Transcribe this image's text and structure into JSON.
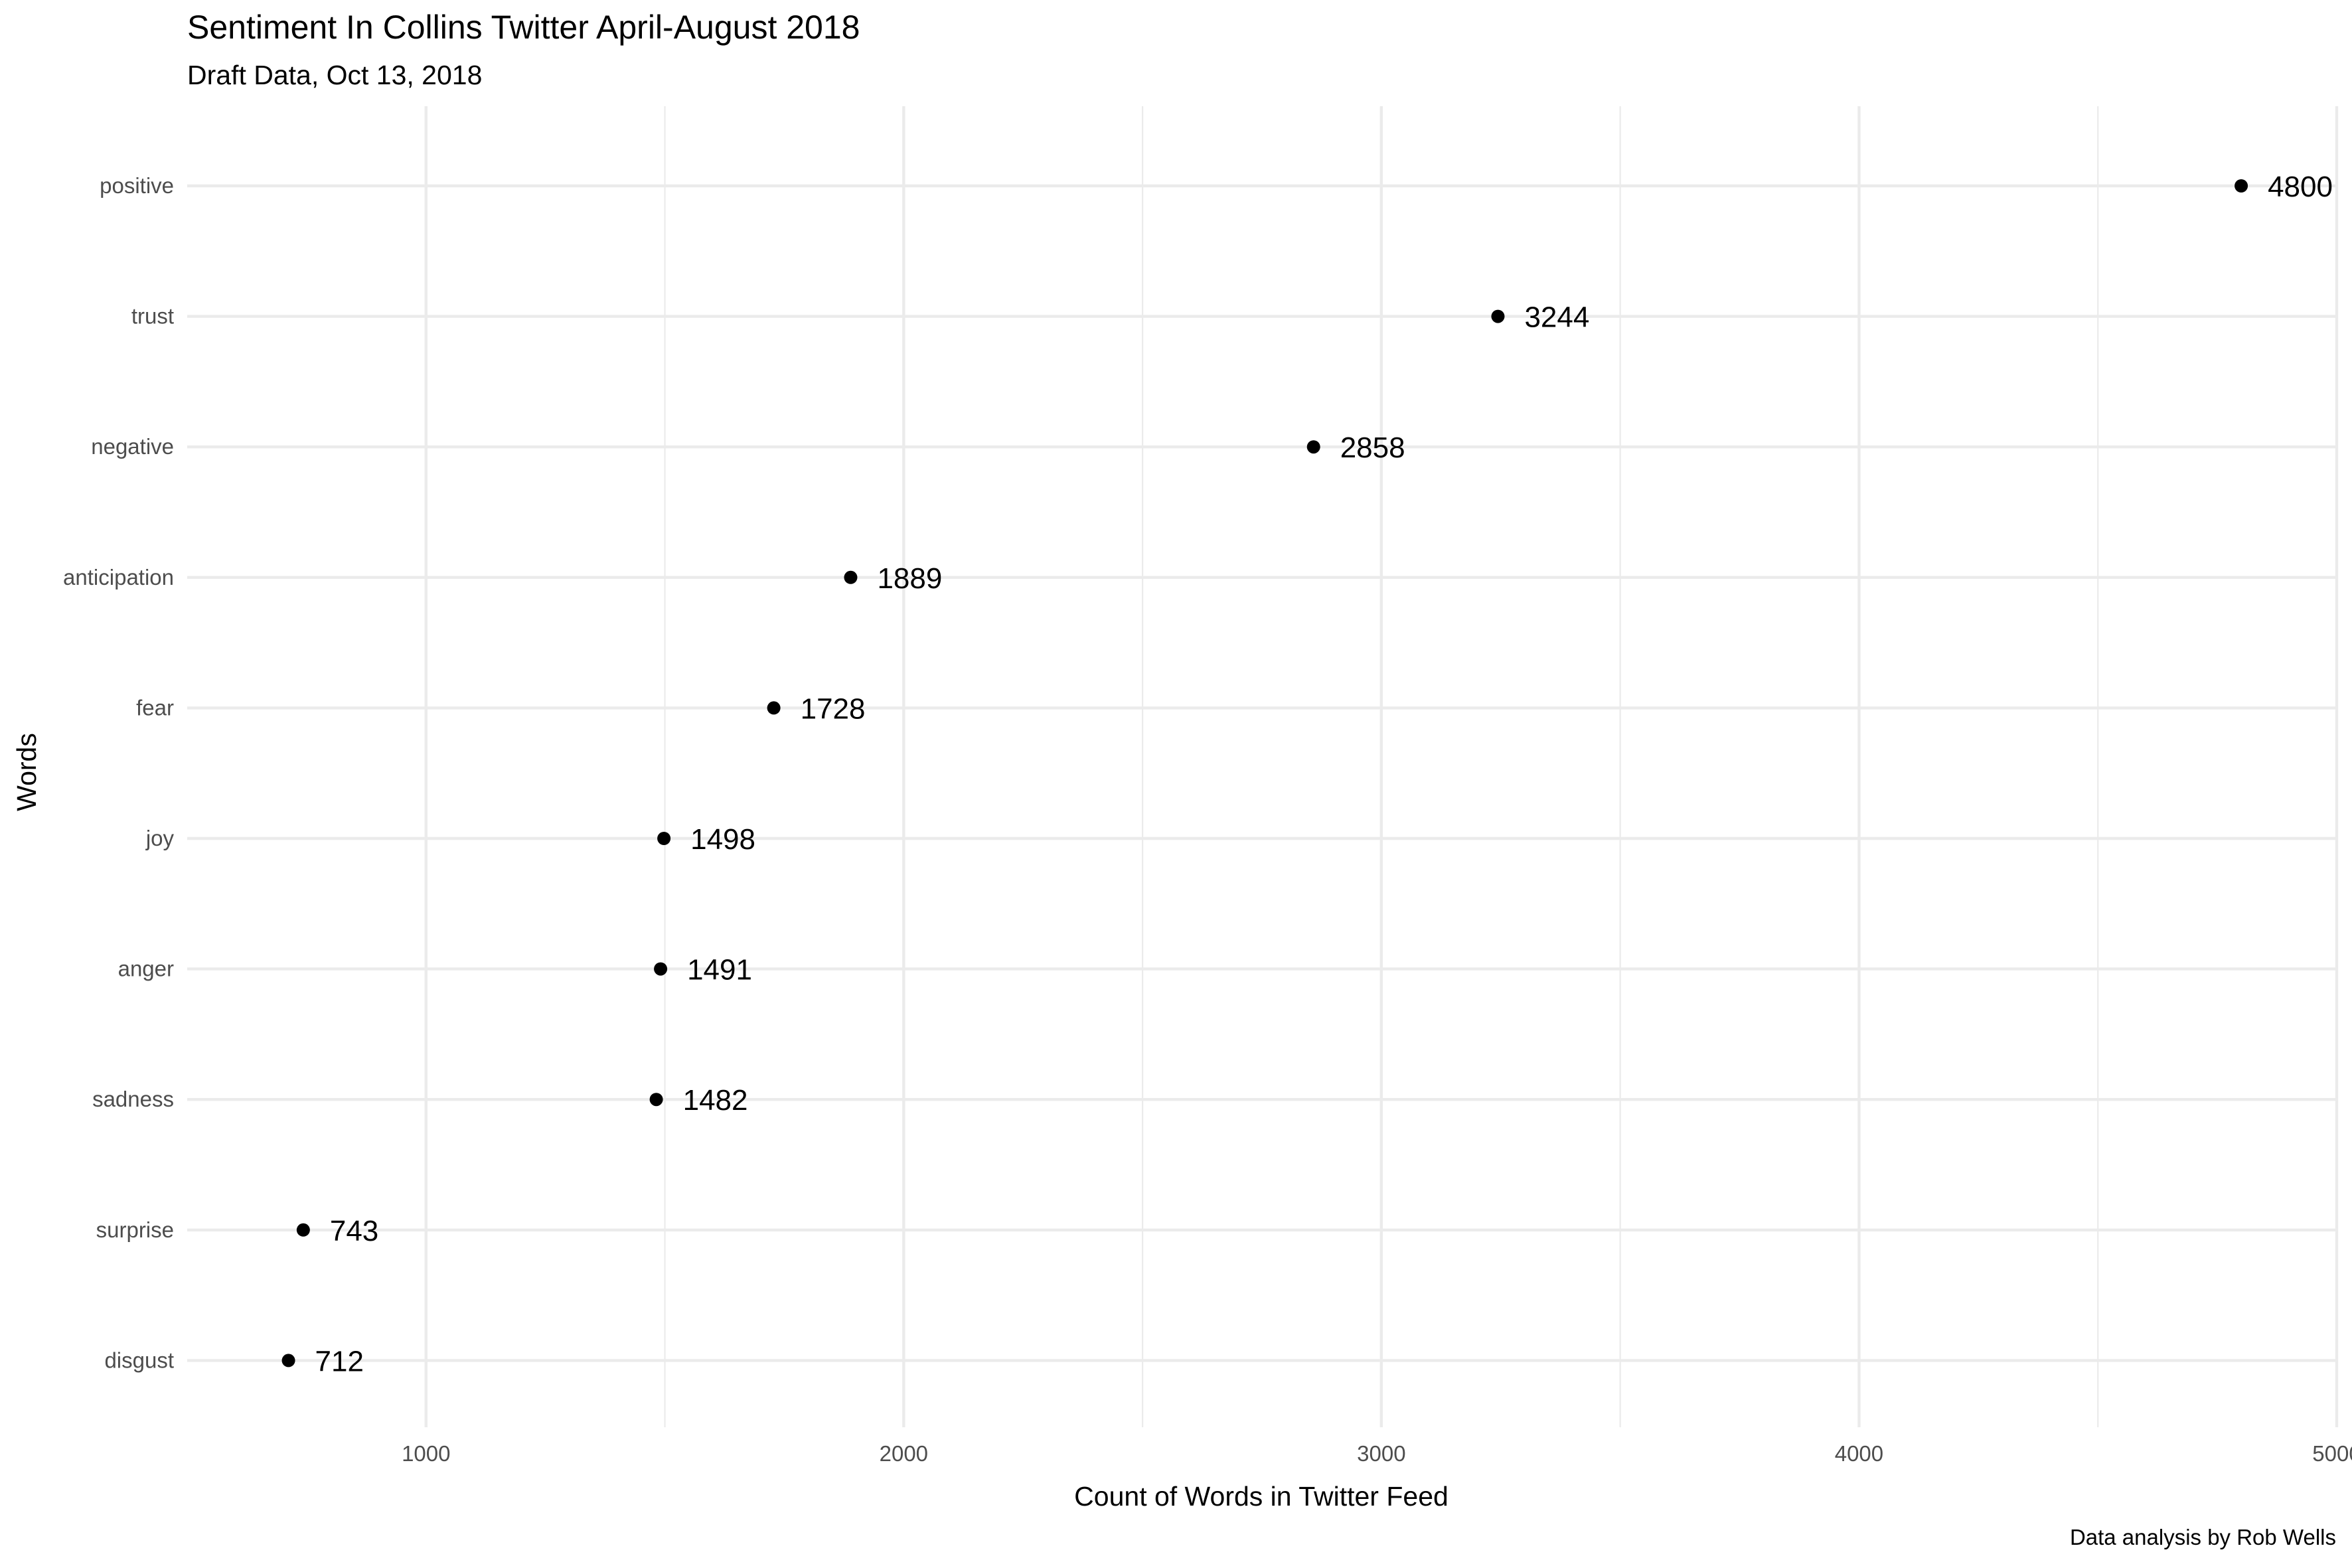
{
  "chart_data": {
    "type": "scatter",
    "title": "Sentiment In Collins Twitter April-August 2018",
    "subtitle": "Draft Data, Oct 13, 2018",
    "caption": "Data analysis by Rob Wells",
    "xlabel": "Count of Words in Twitter Feed",
    "ylabel": "Words",
    "xlim": [
      500,
      5000
    ],
    "x_ticks": [
      1000,
      2000,
      3000,
      4000,
      5000
    ],
    "x_tick_labels": [
      "1000",
      "2000",
      "3000",
      "4000",
      "5000"
    ],
    "grid": true,
    "point_color": "#000000",
    "categories": [
      "positive",
      "trust",
      "negative",
      "anticipation",
      "fear",
      "joy",
      "anger",
      "sadness",
      "surprise",
      "disgust"
    ],
    "values": [
      4800,
      3244,
      2858,
      1889,
      1728,
      1498,
      1491,
      1482,
      743,
      712
    ],
    "labels": [
      "4800",
      "3244",
      "2858",
      "1889",
      "1728",
      "1498",
      "1491",
      "1482",
      "743",
      "712"
    ]
  }
}
